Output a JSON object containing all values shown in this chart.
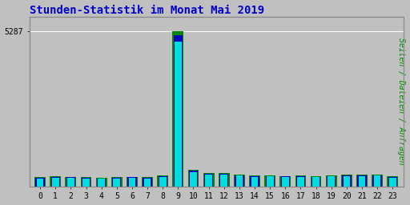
{
  "title": "Stunden-Statistik im Monat Mai 2019",
  "title_color": "#0000cc",
  "ylabel_right": "Seiten / Dateien / Anfragen",
  "ylabel_right_color": "#008800",
  "background_color": "#c0c0c0",
  "plot_bg_color": "#c0c0c0",
  "grid_color": "#ffffff",
  "hours": [
    0,
    1,
    2,
    3,
    4,
    5,
    6,
    7,
    8,
    9,
    10,
    11,
    12,
    13,
    14,
    15,
    16,
    17,
    18,
    19,
    20,
    21,
    22,
    23
  ],
  "seiten": [
    310,
    340,
    330,
    310,
    295,
    320,
    330,
    320,
    370,
    5287,
    560,
    450,
    450,
    415,
    375,
    380,
    360,
    365,
    355,
    380,
    405,
    400,
    415,
    340
  ],
  "dateien": [
    290,
    315,
    310,
    295,
    280,
    300,
    310,
    300,
    350,
    5150,
    530,
    425,
    425,
    390,
    355,
    360,
    340,
    345,
    335,
    360,
    385,
    380,
    390,
    320
  ],
  "anfragen": [
    270,
    295,
    285,
    270,
    260,
    280,
    290,
    280,
    330,
    4950,
    500,
    400,
    400,
    365,
    330,
    340,
    315,
    325,
    315,
    340,
    360,
    355,
    370,
    300
  ],
  "color_seiten": "#008800",
  "color_dateien": "#0000bb",
  "color_anfragen": "#00dddd",
  "bar_width": 0.72,
  "ylim_max": 5800,
  "ytick_label": "5287",
  "ytick_value": 5287,
  "font_family": "monospace",
  "font_size_title": 10,
  "font_size_axis": 7,
  "font_size_ylabel": 7
}
